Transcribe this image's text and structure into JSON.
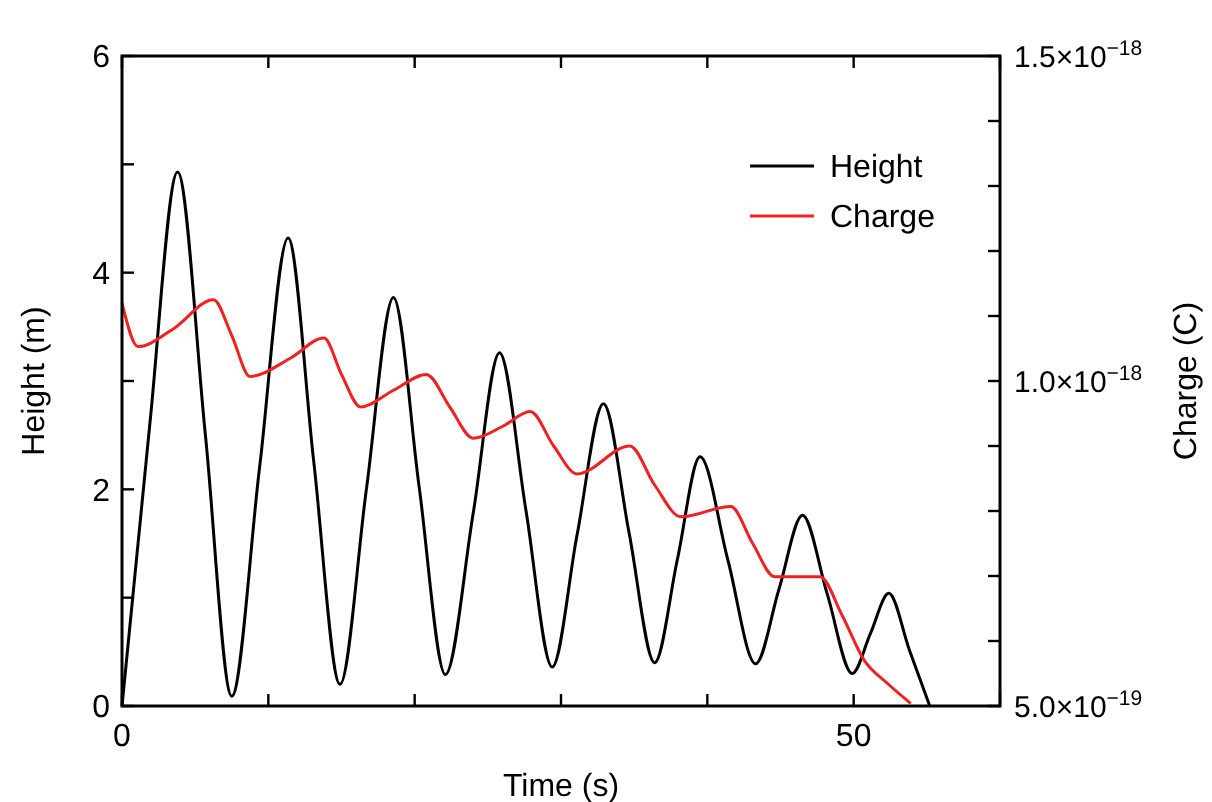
{
  "chart_data": {
    "type": "line",
    "xlabel": "Time (s)",
    "ylabel": "Height (m)",
    "y2label": "Charge (C)",
    "xlim": [
      0,
      60
    ],
    "xticks": [
      0,
      {
        "value": 10,
        "label": null
      },
      {
        "value": 20,
        "label": null
      },
      {
        "value": 30,
        "label": null
      },
      {
        "value": 40,
        "label": null
      },
      50,
      {
        "value": 60,
        "label": null
      }
    ],
    "ylim": [
      0,
      6
    ],
    "yticks": [
      0,
      {
        "value": 1,
        "label": null
      },
      2,
      {
        "value": 3,
        "label": null
      },
      4,
      {
        "value": 5,
        "label": null
      },
      6
    ],
    "y2lim": [
      5e-19,
      1.5e-18
    ],
    "y2ticks": [
      {
        "value": 5e-19,
        "label": "5.0×10$^{−19}$"
      },
      {
        "value": 6e-19,
        "label": null
      },
      {
        "value": 7e-19,
        "label": null
      },
      {
        "value": 8e-19,
        "label": null
      },
      {
        "value": 9e-19,
        "label": null
      },
      {
        "value": 1e-18,
        "label": "1.0×10$^{−18}$"
      },
      {
        "value": 1.1e-18,
        "label": null
      },
      {
        "value": 1.2e-18,
        "label": null
      },
      {
        "value": 1.3e-18,
        "label": null
      },
      {
        "value": 1.4e-18,
        "label": null
      },
      {
        "value": 1.5e-18,
        "label": "1.5×10$^{−18}$"
      }
    ],
    "grid": false,
    "legend": "top right",
    "marker": "none",
    "line_style": "solid",
    "series": [
      {
        "name": "Height",
        "color": "#000000",
        "x": [
          0,
          1.9,
          3.8,
          5.7,
          7.5,
          9.4,
          11.35,
          13.1,
          14.9,
          16.7,
          18.55,
          20.3,
          22.1,
          24.0,
          25.8,
          27.6,
          29.4,
          31.1,
          32.9,
          34.65,
          36.4,
          37.95,
          39.5,
          41.4,
          43.3,
          44.9,
          46.5,
          48.2,
          49.9,
          51.15,
          52.4,
          53.8,
          55.2
        ],
        "values": [
          0,
          2.6,
          4.93,
          2.5,
          0.09,
          2.2,
          4.32,
          2.26,
          0.2,
          2.0,
          3.77,
          2.03,
          0.29,
          1.78,
          3.26,
          1.81,
          0.36,
          1.58,
          2.79,
          1.6,
          0.4,
          1.35,
          2.3,
          1.35,
          0.39,
          1.08,
          1.76,
          1.03,
          0.3,
          0.67,
          1.04,
          0.52,
          0
        ]
      },
      {
        "name": "Charge",
        "color": "#ee2222",
        "axis": "y2",
        "x": [
          0,
          1.1,
          3.5,
          6.25,
          7.5,
          8.75,
          11.5,
          13.8,
          15,
          16.3,
          18.5,
          20.8,
          22.4,
          24.0,
          26,
          27.9,
          29.5,
          31.1,
          34.7,
          36.4,
          38.2,
          41.6,
          43.1,
          44.6,
          47.7,
          49.2,
          50.7,
          52.3,
          53.9
        ],
        "values": [
          1.12e-18,
          1.053e-18,
          1.08e-18,
          1.125e-18,
          1.07e-18,
          1.007e-18,
          1.035e-18,
          1.066e-18,
          1.01e-18,
          9.6e-19,
          9.85e-19,
          1.01e-18,
          9.6e-19,
          9.12e-19,
          9.3e-19,
          9.53e-19,
          9e-19,
          8.57e-19,
          9e-19,
          8.4e-19,
          7.91e-19,
          8.07e-19,
          7.5e-19,
          6.99e-19,
          6.99e-19,
          6.4e-19,
          5.71e-19,
          5.35e-19,
          5.04e-19
        ]
      }
    ]
  }
}
